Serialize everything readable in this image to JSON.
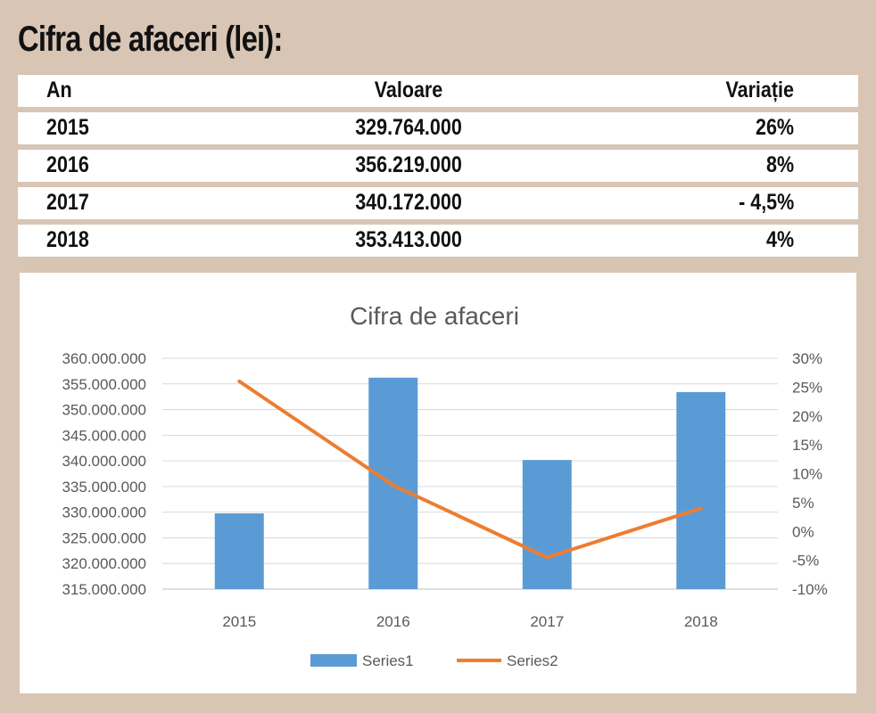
{
  "heading": "Cifra de afaceri (lei):",
  "table": {
    "headers": [
      "An",
      "Valoare",
      "Variație"
    ],
    "rows": [
      [
        "2015",
        "329.764.000",
        "26%"
      ],
      [
        "2016",
        "356.219.000",
        "8%"
      ],
      [
        "2017",
        "340.172.000",
        "- 4,5%"
      ],
      [
        "2018",
        "353.413.000",
        "4%"
      ]
    ]
  },
  "chart_data": {
    "type": "bar",
    "title": "Cifra de afaceri",
    "categories": [
      "2015",
      "2016",
      "2017",
      "2018"
    ],
    "series": [
      {
        "name": "Series1",
        "type": "bar",
        "axis": "left",
        "values": [
          329764000,
          356219000,
          340172000,
          353413000
        ],
        "color": "#5b9bd5"
      },
      {
        "name": "Series2",
        "type": "line",
        "axis": "right",
        "values": [
          26,
          8,
          -4.5,
          4
        ],
        "color": "#ed7d31"
      }
    ],
    "ylim_left": [
      315000000,
      360000000
    ],
    "yticks_left": [
      "360.000.000",
      "355.000.000",
      "350.000.000",
      "345.000.000",
      "340.000.000",
      "335.000.000",
      "330.000.000",
      "325.000.000",
      "320.000.000",
      "315.000.000"
    ],
    "ylim_right": [
      -10,
      30
    ],
    "yticks_right": [
      "30%",
      "25%",
      "20%",
      "15%",
      "10%",
      "5%",
      "0%",
      "-5%",
      "-10%"
    ],
    "grid": true,
    "legend": "bottom"
  }
}
